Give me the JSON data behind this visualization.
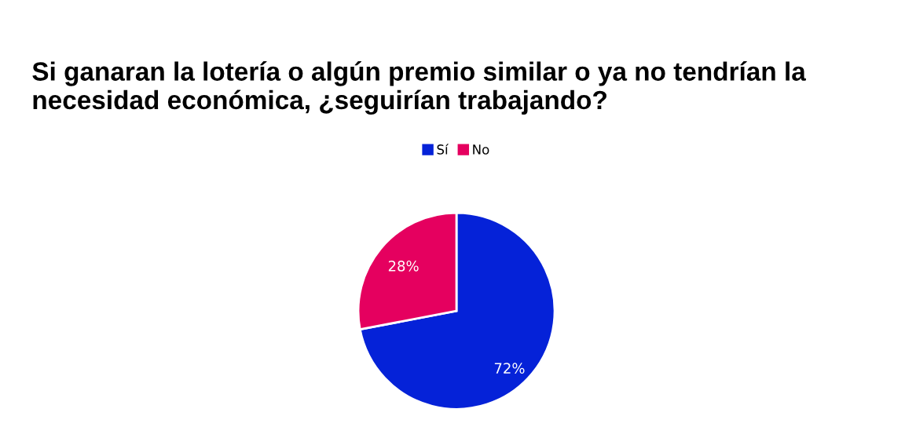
{
  "chart_data": {
    "type": "pie",
    "title": "Si ganaran la lotería o algún premio similar o ya no tendrían la necesidad económica, ¿seguirían trabajando?",
    "categories": [
      "Sí",
      "No"
    ],
    "values": [
      72,
      28
    ],
    "colors": [
      "#0522d8",
      "#e5005f"
    ],
    "value_labels": [
      "72%",
      "28%"
    ],
    "legend": "top"
  }
}
